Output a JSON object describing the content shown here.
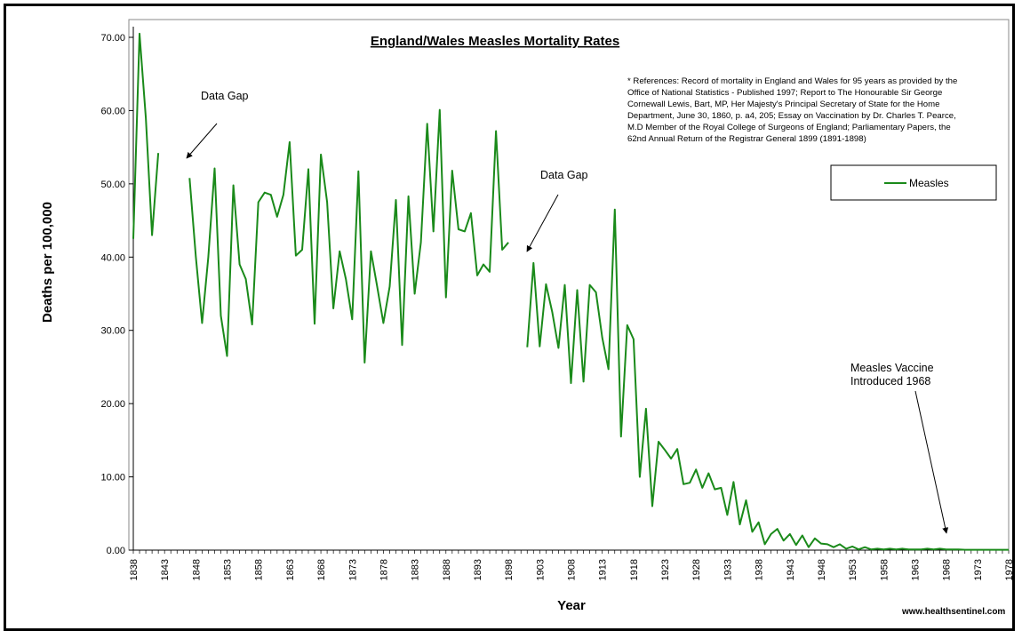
{
  "chart_data": {
    "type": "line",
    "title": "England/Wales Measles Mortality Rates",
    "xlabel": "Year",
    "ylabel": "Deaths per 100,000",
    "xlim": [
      1838,
      1978
    ],
    "ylim": [
      0,
      70
    ],
    "yticks": [
      "0.00",
      "10.00",
      "20.00",
      "30.00",
      "40.00",
      "50.00",
      "60.00",
      "70.00"
    ],
    "xticks": [
      "1838",
      "1843",
      "1848",
      "1853",
      "1858",
      "1863",
      "1868",
      "1873",
      "1878",
      "1883",
      "1888",
      "1893",
      "1898",
      "1903",
      "1908",
      "1913",
      "1918",
      "1923",
      "1928",
      "1933",
      "1938",
      "1943",
      "1948",
      "1953",
      "1958",
      "1963",
      "1968",
      "1973",
      "1978"
    ],
    "grid": false,
    "legend_position": "right",
    "series": [
      {
        "name": "Measles",
        "color": "#1a8a1a",
        "points": [
          [
            1838,
            42.5
          ],
          [
            1839,
            70.5
          ],
          [
            1840,
            59
          ],
          [
            1841,
            43
          ],
          [
            1842,
            54.2
          ],
          [
            1847,
            50.8
          ],
          [
            1848,
            40
          ],
          [
            1849,
            31
          ],
          [
            1850,
            40
          ],
          [
            1851,
            52.1
          ],
          [
            1852,
            32
          ],
          [
            1853,
            26.5
          ],
          [
            1854,
            49.8
          ],
          [
            1855,
            39
          ],
          [
            1856,
            37
          ],
          [
            1857,
            30.8
          ],
          [
            1858,
            47.5
          ],
          [
            1859,
            48.8
          ],
          [
            1860,
            48.5
          ],
          [
            1861,
            45.5
          ],
          [
            1862,
            48.5
          ],
          [
            1863,
            55.7
          ],
          [
            1864,
            40.2
          ],
          [
            1865,
            41
          ],
          [
            1866,
            52
          ],
          [
            1867,
            30.9
          ],
          [
            1868,
            54
          ],
          [
            1869,
            47.5
          ],
          [
            1870,
            33
          ],
          [
            1871,
            40.8
          ],
          [
            1872,
            37
          ],
          [
            1873,
            31.5
          ],
          [
            1874,
            51.7
          ],
          [
            1875,
            25.6
          ],
          [
            1876,
            40.8
          ],
          [
            1877,
            36
          ],
          [
            1878,
            31
          ],
          [
            1879,
            36
          ],
          [
            1880,
            47.8
          ],
          [
            1881,
            28
          ],
          [
            1882,
            48.3
          ],
          [
            1883,
            35
          ],
          [
            1884,
            42
          ],
          [
            1885,
            58.2
          ],
          [
            1886,
            43.5
          ],
          [
            1887,
            60.1
          ],
          [
            1888,
            34.5
          ],
          [
            1889,
            51.8
          ],
          [
            1890,
            43.8
          ],
          [
            1891,
            43.5
          ],
          [
            1892,
            46
          ],
          [
            1893,
            37.5
          ],
          [
            1894,
            39
          ],
          [
            1895,
            38
          ],
          [
            1896,
            57.2
          ],
          [
            1897,
            41
          ],
          [
            1898,
            42
          ],
          [
            1901,
            27.7
          ],
          [
            1902,
            39.2
          ],
          [
            1903,
            27.8
          ],
          [
            1904,
            36.3
          ],
          [
            1905,
            32.5
          ],
          [
            1906,
            27.6
          ],
          [
            1907,
            36.2
          ],
          [
            1908,
            22.8
          ],
          [
            1909,
            35.5
          ],
          [
            1910,
            23
          ],
          [
            1911,
            36.2
          ],
          [
            1912,
            35.2
          ],
          [
            1913,
            29
          ],
          [
            1914,
            24.7
          ],
          [
            1915,
            46.5
          ],
          [
            1916,
            15.5
          ],
          [
            1917,
            30.7
          ],
          [
            1918,
            28.8
          ],
          [
            1919,
            10
          ],
          [
            1920,
            19.3
          ],
          [
            1921,
            6
          ],
          [
            1922,
            14.8
          ],
          [
            1923,
            13.7
          ],
          [
            1924,
            12.5
          ],
          [
            1925,
            13.8
          ],
          [
            1926,
            9
          ],
          [
            1927,
            9.2
          ],
          [
            1928,
            11
          ],
          [
            1929,
            8.5
          ],
          [
            1930,
            10.5
          ],
          [
            1931,
            8.3
          ],
          [
            1932,
            8.5
          ],
          [
            1933,
            4.8
          ],
          [
            1934,
            9.3
          ],
          [
            1935,
            3.5
          ],
          [
            1936,
            6.8
          ],
          [
            1937,
            2.5
          ],
          [
            1938,
            3.8
          ],
          [
            1939,
            0.8
          ],
          [
            1940,
            2.2
          ],
          [
            1941,
            2.9
          ],
          [
            1942,
            1.3
          ],
          [
            1943,
            2.2
          ],
          [
            1944,
            0.7
          ],
          [
            1945,
            2
          ],
          [
            1946,
            0.4
          ],
          [
            1947,
            1.6
          ],
          [
            1948,
            0.9
          ],
          [
            1949,
            0.8
          ],
          [
            1950,
            0.4
          ],
          [
            1951,
            0.8
          ],
          [
            1952,
            0.2
          ],
          [
            1953,
            0.5
          ],
          [
            1954,
            0.1
          ],
          [
            1955,
            0.4
          ],
          [
            1956,
            0.1
          ],
          [
            1957,
            0.2
          ],
          [
            1958,
            0.1
          ],
          [
            1959,
            0.2
          ],
          [
            1960,
            0.1
          ],
          [
            1961,
            0.2
          ],
          [
            1962,
            0.1
          ],
          [
            1963,
            0.1
          ],
          [
            1964,
            0.1
          ],
          [
            1965,
            0.2
          ],
          [
            1966,
            0.1
          ],
          [
            1967,
            0.2
          ],
          [
            1968,
            0.1
          ],
          [
            1969,
            0.1
          ],
          [
            1970,
            0.1
          ],
          [
            1971,
            0.05
          ],
          [
            1972,
            0.05
          ],
          [
            1973,
            0.05
          ],
          [
            1974,
            0.05
          ],
          [
            1975,
            0.05
          ],
          [
            1976,
            0.05
          ],
          [
            1977,
            0.05
          ],
          [
            1978,
            0.05
          ]
        ]
      }
    ],
    "annotations": {
      "gap1": "Data Gap",
      "gap2": "Data Gap",
      "vaccine_line1": "Measles Vaccine",
      "vaccine_line2": "Introduced 1968"
    },
    "references": [
      "* References: Record of mortality in England and Wales for 95 years as provided by the",
      "Office of National Statistics - Published 1997; Report to The Honourable Sir George",
      "Cornewall Lewis, Bart, MP, Her Majesty's Principal Secretary of State for the Home",
      "Department, June 30, 1860, p. a4, 205; Essay on Vaccination by Dr. Charles T. Pearce,",
      "M.D Member of the Royal College of Surgeons of England; Parliamentary Papers, the",
      "62nd Annual Return of the Registrar General 1899 (1891-1898)"
    ],
    "credit": "www.healthsentinel.com"
  }
}
